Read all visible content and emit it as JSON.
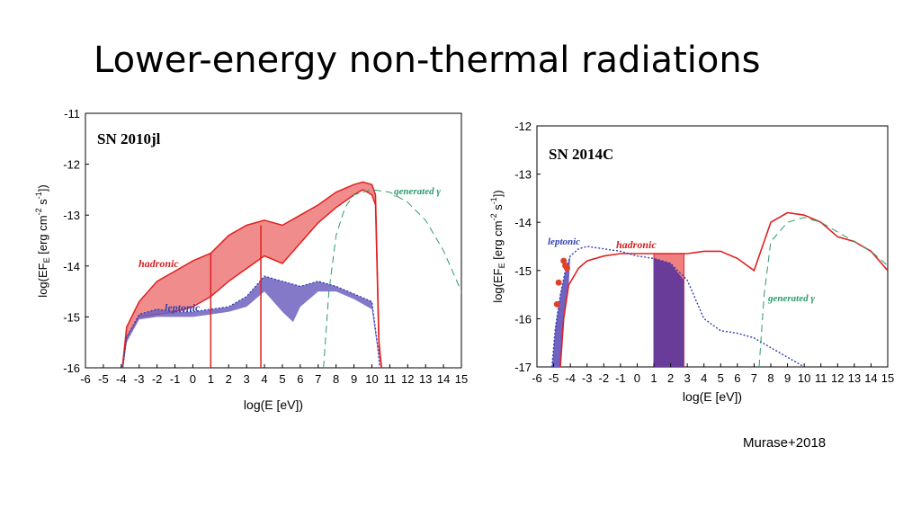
{
  "slide": {
    "title": "Lower-energy non-thermal radiations",
    "credit": "Murase+2018"
  },
  "colors": {
    "hadronic_fill": "#f08080",
    "hadronic_line": "#e02020",
    "leptonic_fill": "#6f62c0",
    "leptonic_line": "#3040b0",
    "generated_line": "#2e9a6a",
    "overlap_fill": "#6a3c9a",
    "data_point": "#e0402a"
  },
  "chart_data": [
    {
      "type": "line",
      "title": "SN 2010jl",
      "xlabel": "log(E [eV])",
      "ylabel": "log(EF_E [erg cm^-2 s^-1])",
      "xlim": [
        -6,
        15
      ],
      "ylim": [
        -16,
        -11
      ],
      "xticks": [
        "-6",
        "-5",
        "-4",
        "-3",
        "-2",
        "-1",
        "0",
        "1",
        "2",
        "3",
        "4",
        "5",
        "6",
        "7",
        "8",
        "9",
        "10",
        "11",
        "12",
        "13",
        "14",
        "15"
      ],
      "yticks": [
        "-11",
        "-12",
        "-13",
        "-14",
        "-15",
        "-16"
      ],
      "labels": {
        "hadronic": "hadronic",
        "leptonic": "leptonic",
        "generated": "generated γ"
      },
      "series": [
        {
          "name": "hadronic",
          "band_upper": [
            [
              -4,
              -16.2
            ],
            [
              -3.7,
              -15.2
            ],
            [
              -3,
              -14.7
            ],
            [
              -2,
              -14.3
            ],
            [
              -1,
              -14.1
            ],
            [
              0,
              -13.9
            ],
            [
              1,
              -13.75
            ],
            [
              2,
              -13.4
            ],
            [
              3,
              -13.2
            ],
            [
              4,
              -13.1
            ],
            [
              5,
              -13.2
            ],
            [
              6,
              -13.0
            ],
            [
              7,
              -12.8
            ],
            [
              8,
              -12.55
            ],
            [
              9,
              -12.4
            ],
            [
              9.5,
              -12.35
            ],
            [
              10,
              -12.4
            ],
            [
              10.2,
              -12.6
            ],
            [
              10.4,
              -15.5
            ],
            [
              10.6,
              -16.2
            ]
          ],
          "band_lower": [
            [
              -4,
              -16.2
            ],
            [
              -3.7,
              -15.4
            ],
            [
              -3,
              -15.0
            ],
            [
              -2,
              -14.95
            ],
            [
              -1,
              -14.9
            ],
            [
              0,
              -14.8
            ],
            [
              1,
              -14.6
            ],
            [
              2,
              -14.3
            ],
            [
              3,
              -14.05
            ],
            [
              4,
              -13.8
            ],
            [
              5,
              -13.95
            ],
            [
              6,
              -13.55
            ],
            [
              7,
              -13.15
            ],
            [
              8,
              -12.85
            ],
            [
              9,
              -12.6
            ],
            [
              9.5,
              -12.5
            ],
            [
              10,
              -12.6
            ],
            [
              10.2,
              -12.8
            ],
            [
              10.4,
              -15.6
            ],
            [
              10.6,
              -16.2
            ]
          ]
        },
        {
          "name": "leptonic",
          "band_upper": [
            [
              -4,
              -16.2
            ],
            [
              -3.7,
              -15.4
            ],
            [
              -3,
              -14.95
            ],
            [
              -2,
              -14.85
            ],
            [
              -1,
              -14.9
            ],
            [
              0,
              -14.9
            ],
            [
              1,
              -14.85
            ],
            [
              2,
              -14.8
            ],
            [
              3,
              -14.6
            ],
            [
              4,
              -14.2
            ],
            [
              5,
              -14.3
            ],
            [
              6,
              -14.4
            ],
            [
              7,
              -14.3
            ],
            [
              8,
              -14.4
            ],
            [
              9,
              -14.55
            ],
            [
              10,
              -14.7
            ],
            [
              10.3,
              -15.5
            ],
            [
              10.5,
              -16.2
            ]
          ],
          "band_lower": [
            [
              -4,
              -16.2
            ],
            [
              -3.7,
              -15.5
            ],
            [
              -3,
              -15.05
            ],
            [
              -2,
              -15.0
            ],
            [
              -1,
              -15.0
            ],
            [
              0,
              -15.0
            ],
            [
              1,
              -14.95
            ],
            [
              2,
              -14.9
            ],
            [
              3,
              -14.8
            ],
            [
              4,
              -14.5
            ],
            [
              5,
              -14.9
            ],
            [
              5.6,
              -15.1
            ],
            [
              6,
              -14.8
            ],
            [
              7,
              -14.5
            ],
            [
              8,
              -14.5
            ],
            [
              9,
              -14.65
            ],
            [
              10,
              -14.85
            ],
            [
              10.3,
              -15.6
            ],
            [
              10.5,
              -16.2
            ]
          ]
        },
        {
          "name": "generated γ",
          "points": [
            [
              7.3,
              -16.0
            ],
            [
              7.6,
              -14.5
            ],
            [
              8,
              -13.4
            ],
            [
              8.5,
              -12.85
            ],
            [
              9,
              -12.6
            ],
            [
              10,
              -12.5
            ],
            [
              11,
              -12.55
            ],
            [
              12,
              -12.75
            ],
            [
              13,
              -13.1
            ],
            [
              14,
              -13.7
            ],
            [
              15,
              -14.5
            ],
            [
              15.3,
              -15.0
            ]
          ]
        }
      ]
    },
    {
      "type": "line",
      "title": "SN 2014C",
      "xlabel": "log(E [eV])",
      "ylabel": "log(EF_E [erg cm^-2 s^-1])",
      "xlim": [
        -6,
        15
      ],
      "ylim": [
        -17,
        -12
      ],
      "xticks": [
        "-6",
        "-5",
        "-4",
        "-3",
        "-2",
        "-1",
        "0",
        "1",
        "2",
        "3",
        "4",
        "5",
        "6",
        "7",
        "8",
        "9",
        "10",
        "11",
        "12",
        "13",
        "14",
        "15"
      ],
      "yticks": [
        "-12",
        "-13",
        "-14",
        "-15",
        "-16",
        "-17"
      ],
      "labels": {
        "hadronic": "hadronic",
        "leptonic": "leptonic",
        "generated": "generated γ"
      },
      "series": [
        {
          "name": "hadronic",
          "points": [
            [
              -4.6,
              -17.0
            ],
            [
              -4.4,
              -16.0
            ],
            [
              -4.1,
              -15.3
            ],
            [
              -3.5,
              -14.95
            ],
            [
              -3,
              -14.8
            ],
            [
              -2,
              -14.7
            ],
            [
              -1,
              -14.65
            ],
            [
              0,
              -14.65
            ],
            [
              1,
              -14.65
            ],
            [
              2,
              -14.65
            ],
            [
              3,
              -14.65
            ],
            [
              4,
              -14.6
            ],
            [
              5,
              -14.6
            ],
            [
              6,
              -14.75
            ],
            [
              7,
              -15.0
            ],
            [
              7.5,
              -14.5
            ],
            [
              8,
              -14.0
            ],
            [
              9,
              -13.8
            ],
            [
              10,
              -13.85
            ],
            [
              11,
              -14.0
            ],
            [
              12,
              -14.3
            ],
            [
              13,
              -14.4
            ],
            [
              14,
              -14.6
            ],
            [
              15,
              -15.0
            ]
          ]
        },
        {
          "name": "leptonic",
          "points": [
            [
              -5.1,
              -17.0
            ],
            [
              -4.9,
              -16.2
            ],
            [
              -4.6,
              -15.5
            ],
            [
              -4.3,
              -15.0
            ],
            [
              -4.0,
              -14.7
            ],
            [
              -3.5,
              -14.55
            ],
            [
              -3,
              -14.5
            ],
            [
              -2,
              -14.55
            ],
            [
              -1,
              -14.6
            ],
            [
              0,
              -14.7
            ],
            [
              1,
              -14.75
            ],
            [
              2,
              -14.85
            ],
            [
              3,
              -15.2
            ],
            [
              4,
              -16.0
            ],
            [
              5,
              -16.25
            ],
            [
              6,
              -16.3
            ],
            [
              7,
              -16.4
            ],
            [
              8,
              -16.6
            ],
            [
              9,
              -16.8
            ],
            [
              10,
              -17.0
            ]
          ]
        },
        {
          "name": "generated γ",
          "points": [
            [
              7.3,
              -17.0
            ],
            [
              7.6,
              -15.5
            ],
            [
              8,
              -14.4
            ],
            [
              9,
              -14.0
            ],
            [
              10,
              -13.9
            ],
            [
              11,
              -14.0
            ],
            [
              12,
              -14.2
            ],
            [
              13,
              -14.4
            ],
            [
              14,
              -14.6
            ],
            [
              15,
              -14.9
            ]
          ]
        },
        {
          "name": "data",
          "points": [
            [
              -4.4,
              -14.8
            ],
            [
              -4.3,
              -14.9
            ],
            [
              -4.2,
              -14.95
            ],
            [
              -4.7,
              -15.25
            ],
            [
              -4.8,
              -15.7
            ]
          ]
        }
      ]
    }
  ]
}
